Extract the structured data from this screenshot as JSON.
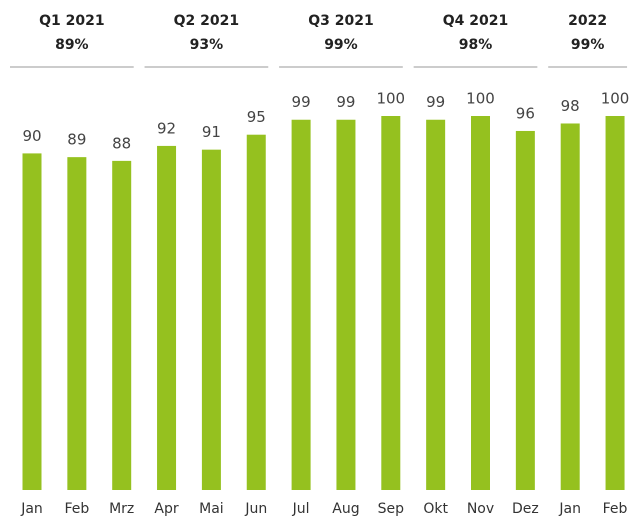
{
  "chart_data": {
    "type": "bar",
    "color": "#95c11f",
    "ylim": [
      0,
      100
    ],
    "groups": [
      {
        "name": "Q1 2021",
        "total": 89,
        "total_label": "89%",
        "categories": [
          "Jan",
          "Feb",
          "Mrz"
        ],
        "values": [
          90,
          89,
          88
        ]
      },
      {
        "name": "Q2 2021",
        "total": 93,
        "total_label": "93%",
        "categories": [
          "Apr",
          "Mai",
          "Jun"
        ],
        "values": [
          92,
          91,
          95
        ]
      },
      {
        "name": "Q3 2021",
        "total": 99,
        "total_label": "99%",
        "categories": [
          "Jul",
          "Aug",
          "Sep"
        ],
        "values": [
          99,
          99,
          100
        ]
      },
      {
        "name": "Q4 2021",
        "total": 98,
        "total_label": "98%",
        "categories": [
          "Okt",
          "Nov",
          "Dez"
        ],
        "values": [
          99,
          100,
          96
        ]
      },
      {
        "name": "2022",
        "total": 99,
        "total_label": "99%",
        "categories": [
          "Jan",
          "Feb"
        ],
        "values": [
          98,
          100
        ]
      }
    ]
  }
}
